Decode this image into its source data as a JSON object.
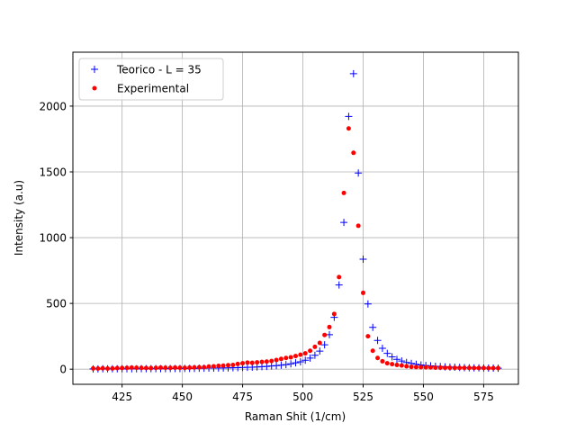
{
  "chart_data": {
    "type": "scatter",
    "xlabel": "Raman Shit (1/cm)",
    "ylabel": "Intensity (a.u)",
    "x": [
      413,
      415,
      417,
      419,
      421,
      423,
      425,
      427,
      429,
      431,
      433,
      435,
      437,
      439,
      441,
      443,
      445,
      447,
      449,
      451,
      453,
      455,
      457,
      459,
      461,
      463,
      465,
      467,
      469,
      471,
      473,
      475,
      477,
      479,
      481,
      483,
      485,
      487,
      489,
      491,
      493,
      495,
      497,
      499,
      501,
      503,
      505,
      507,
      509,
      511,
      513,
      515,
      517,
      519,
      521,
      523,
      525,
      527,
      529,
      531,
      533,
      535,
      537,
      539,
      541,
      543,
      545,
      547,
      549,
      551,
      553,
      555,
      557,
      559,
      561,
      563,
      565,
      567,
      569,
      571,
      573,
      575,
      577,
      579,
      581
    ],
    "series": [
      {
        "name": "Teorico - L = 35",
        "color": "#0000ff",
        "marker": "plus",
        "values": [
          2,
          2,
          3,
          3,
          3,
          3,
          3,
          3,
          3,
          3,
          4,
          4,
          4,
          4,
          4,
          4,
          5,
          5,
          5,
          6,
          6,
          6,
          7,
          7,
          8,
          8,
          9,
          9,
          10,
          11,
          12,
          13,
          14,
          15,
          17,
          19,
          21,
          24,
          27,
          30,
          35,
          41,
          48,
          56,
          68,
          84,
          106,
          137,
          185,
          262,
          394,
          640,
          1116,
          1922,
          2247,
          1491,
          836,
          496,
          318,
          219,
          159,
          120,
          94,
          75,
          62,
          51,
          44,
          37,
          32,
          28,
          25,
          22,
          20,
          18,
          16,
          15,
          13,
          12,
          11,
          10,
          10,
          9,
          8,
          8,
          7
        ]
      },
      {
        "name": "Experimental",
        "color": "#ff0000",
        "marker": "dot",
        "values": [
          6,
          5,
          7,
          5,
          6,
          8,
          9,
          10,
          12,
          11,
          10,
          9,
          8,
          10,
          12,
          11,
          10,
          12,
          11,
          10,
          12,
          13,
          14,
          15,
          20,
          22,
          25,
          27,
          30,
          32,
          40,
          45,
          50,
          48,
          52,
          55,
          58,
          62,
          70,
          78,
          85,
          90,
          100,
          110,
          120,
          140,
          170,
          200,
          260,
          320,
          420,
          700,
          1340,
          1830,
          1645,
          1090,
          580,
          250,
          140,
          85,
          60,
          45,
          38,
          32,
          28,
          22,
          18,
          16,
          15,
          14,
          13,
          12,
          12,
          11,
          11,
          10,
          10,
          10,
          10,
          9,
          9,
          9,
          8,
          8,
          8
        ]
      }
    ],
    "xlim": [
      404.6,
      589.4
    ],
    "xticks": [
      425,
      450,
      475,
      500,
      525,
      550,
      575
    ],
    "ylim": [
      -115,
      2410
    ],
    "yticks": [
      0,
      500,
      1000,
      1500,
      2000
    ],
    "grid": true,
    "legend": "upper left"
  }
}
